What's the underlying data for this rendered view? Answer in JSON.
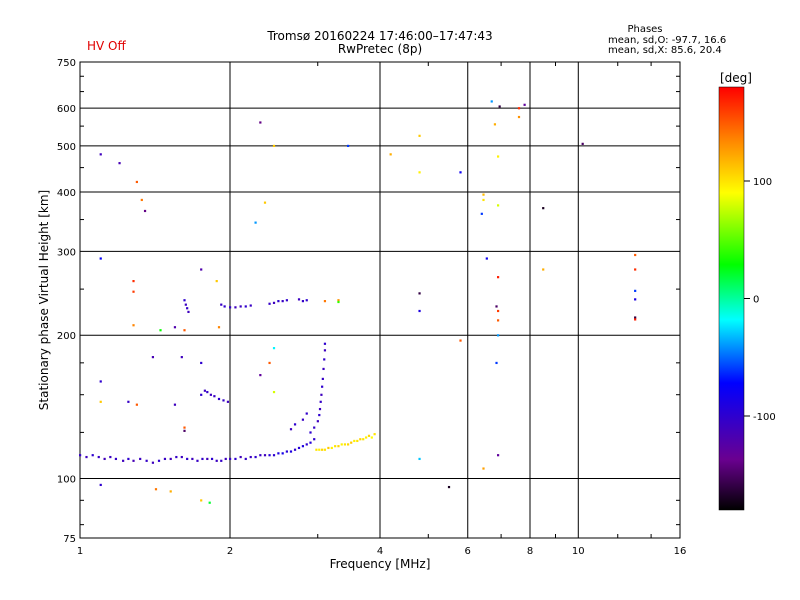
{
  "header": {
    "hv_status": "HV Off",
    "title_line1": "Tromsø 20160224 17:46:00–17:47:43",
    "title_line2": "RwPretec (8p)",
    "colors": {
      "hv_status": "#e00000"
    }
  },
  "stats": {
    "title": "Phases",
    "line_o": "mean, sd,O: -97.7, 16.6",
    "line_x": "mean, sd,X: 85.6, 20.4"
  },
  "colorbar": {
    "unit_label": "[deg]",
    "ticks": [
      {
        "value": 100,
        "label": "100"
      },
      {
        "value": 0,
        "label": "0"
      },
      {
        "value": -100,
        "label": "-100"
      }
    ],
    "range": [
      -180,
      180
    ]
  },
  "chart_data": {
    "type": "scatter",
    "title": "Tromsø 20160224 17:46:00–17:47:43 RwPretec (8p)",
    "xlabel": "Frequency [MHz]",
    "ylabel": "Stationary phase Virtual Height [km]",
    "xscale": "log",
    "yscale": "log",
    "xlim": [
      1,
      16
    ],
    "ylim": [
      75,
      750
    ],
    "grid": true,
    "x_ticks": [
      {
        "value": 1,
        "label": "1"
      },
      {
        "value": 2,
        "label": "2"
      },
      {
        "value": 4,
        "label": "4"
      },
      {
        "value": 6,
        "label": "6"
      },
      {
        "value": 8,
        "label": "8"
      },
      {
        "value": 10,
        "label": "10"
      },
      {
        "value": 16,
        "label": "16"
      }
    ],
    "y_ticks": [
      {
        "value": 75,
        "label": "75"
      },
      {
        "value": 100,
        "label": "100"
      },
      {
        "value": 200,
        "label": "200"
      },
      {
        "value": 300,
        "label": "300"
      },
      {
        "value": 400,
        "label": "400"
      },
      {
        "value": 500,
        "label": "500"
      },
      {
        "value": 600,
        "label": "600"
      },
      {
        "value": 750,
        "label": "750"
      }
    ],
    "color_by": "phase_deg",
    "points": [
      [
        1.0,
        112,
        -105
      ],
      [
        1.03,
        111,
        -110
      ],
      [
        1.06,
        112,
        -100
      ],
      [
        1.09,
        111,
        -105
      ],
      [
        1.12,
        110,
        -112
      ],
      [
        1.15,
        111,
        -108
      ],
      [
        1.18,
        110,
        -104
      ],
      [
        1.22,
        109,
        -110
      ],
      [
        1.25,
        110,
        -100
      ],
      [
        1.28,
        109,
        -115
      ],
      [
        1.32,
        110,
        -108
      ],
      [
        1.36,
        109,
        -104
      ],
      [
        1.4,
        108,
        -110
      ],
      [
        1.44,
        109,
        -100
      ],
      [
        1.48,
        110,
        -106
      ],
      [
        1.52,
        110,
        -112
      ],
      [
        1.56,
        111,
        -104
      ],
      [
        1.6,
        111,
        -108
      ],
      [
        1.64,
        110,
        -100
      ],
      [
        1.68,
        110,
        -110
      ],
      [
        1.72,
        109,
        -106
      ],
      [
        1.76,
        110,
        -104
      ],
      [
        1.8,
        110,
        -112
      ],
      [
        1.84,
        110,
        -100
      ],
      [
        1.88,
        109,
        -108
      ],
      [
        1.92,
        109,
        -104
      ],
      [
        1.96,
        110,
        -110
      ],
      [
        2.0,
        110,
        -106
      ],
      [
        2.05,
        110,
        -100
      ],
      [
        2.1,
        111,
        -112
      ],
      [
        2.15,
        110,
        -104
      ],
      [
        2.2,
        111,
        -108
      ],
      [
        2.25,
        111,
        -100
      ],
      [
        2.3,
        112,
        -106
      ],
      [
        2.35,
        112,
        -110
      ],
      [
        2.4,
        112,
        -95
      ],
      [
        2.45,
        112,
        -100
      ],
      [
        2.5,
        113,
        -90
      ],
      [
        2.55,
        113,
        -85
      ],
      [
        2.6,
        114,
        -95
      ],
      [
        2.65,
        114,
        -90
      ],
      [
        2.7,
        115,
        -100
      ],
      [
        2.75,
        116,
        -95
      ],
      [
        2.8,
        117,
        -90
      ],
      [
        2.85,
        118,
        -100
      ],
      [
        2.9,
        119,
        -95
      ],
      [
        2.95,
        121,
        -100
      ],
      [
        2.98,
        115,
        100
      ],
      [
        3.02,
        115,
        95
      ],
      [
        3.06,
        115,
        105
      ],
      [
        3.1,
        115,
        100
      ],
      [
        3.15,
        116,
        110
      ],
      [
        3.2,
        116,
        95
      ],
      [
        3.25,
        117,
        100
      ],
      [
        3.3,
        117,
        105
      ],
      [
        3.35,
        118,
        95
      ],
      [
        3.4,
        118,
        100
      ],
      [
        3.45,
        118,
        105
      ],
      [
        3.5,
        119,
        110
      ],
      [
        3.55,
        120,
        95
      ],
      [
        3.6,
        120,
        100
      ],
      [
        3.65,
        121,
        105
      ],
      [
        3.7,
        121,
        100
      ],
      [
        3.75,
        122,
        95
      ],
      [
        3.8,
        123,
        105
      ],
      [
        3.85,
        122,
        90
      ],
      [
        3.9,
        124,
        100
      ],
      [
        2.9,
        125,
        -100
      ],
      [
        2.95,
        128,
        -104
      ],
      [
        3.0,
        132,
        -110
      ],
      [
        3.02,
        136,
        -100
      ],
      [
        3.03,
        140,
        -108
      ],
      [
        3.04,
        145,
        -104
      ],
      [
        3.05,
        150,
        -110
      ],
      [
        3.06,
        156,
        -100
      ],
      [
        3.07,
        162,
        -105
      ],
      [
        3.08,
        170,
        -108
      ],
      [
        3.09,
        178,
        -102
      ],
      [
        3.1,
        186,
        -110
      ],
      [
        3.1,
        192,
        -100
      ],
      [
        2.7,
        130,
        -100
      ],
      [
        2.8,
        133,
        -106
      ],
      [
        2.85,
        137,
        -102
      ],
      [
        2.65,
        127,
        -110
      ],
      [
        1.62,
        237,
        -100
      ],
      [
        1.63,
        232,
        -108
      ],
      [
        1.64,
        228,
        -104
      ],
      [
        1.65,
        224,
        -110
      ],
      [
        1.92,
        232,
        -106
      ],
      [
        1.95,
        230,
        -100
      ],
      [
        2.0,
        229,
        -104
      ],
      [
        2.05,
        229,
        -110
      ],
      [
        2.1,
        230,
        -108
      ],
      [
        2.15,
        230,
        -100
      ],
      [
        2.2,
        231,
        -106
      ],
      [
        2.4,
        233,
        -104
      ],
      [
        2.45,
        234,
        -110
      ],
      [
        2.5,
        236,
        -100
      ],
      [
        2.55,
        236,
        -106
      ],
      [
        2.6,
        237,
        -102
      ],
      [
        2.75,
        238,
        -108
      ],
      [
        2.8,
        236,
        -104
      ],
      [
        2.85,
        237,
        -100
      ],
      [
        3.1,
        236,
        140
      ],
      [
        3.3,
        237,
        130
      ],
      [
        1.75,
        150,
        -100
      ],
      [
        1.78,
        153,
        -108
      ],
      [
        1.8,
        152,
        -104
      ],
      [
        1.83,
        150,
        -110
      ],
      [
        1.86,
        149,
        -106
      ],
      [
        1.9,
        147,
        -100
      ],
      [
        1.94,
        146,
        -104
      ],
      [
        1.98,
        145,
        -110
      ],
      [
        1.1,
        480,
        -110
      ],
      [
        1.2,
        460,
        -115
      ],
      [
        1.3,
        420,
        150
      ],
      [
        1.33,
        385,
        140
      ],
      [
        1.35,
        365,
        -140
      ],
      [
        1.1,
        290,
        -75
      ],
      [
        1.28,
        260,
        165
      ],
      [
        1.28,
        247,
        160
      ],
      [
        1.28,
        210,
        135
      ],
      [
        1.4,
        180,
        -115
      ],
      [
        1.1,
        160,
        -100
      ],
      [
        1.1,
        145,
        110
      ],
      [
        1.25,
        145,
        -105
      ],
      [
        1.3,
        143,
        150
      ],
      [
        1.55,
        143,
        -110
      ],
      [
        1.62,
        128,
        150
      ],
      [
        1.62,
        126,
        -150
      ],
      [
        1.55,
        208,
        -120
      ],
      [
        1.45,
        205,
        30
      ],
      [
        1.62,
        205,
        150
      ],
      [
        1.6,
        180,
        -110
      ],
      [
        1.75,
        175,
        -100
      ],
      [
        1.75,
        275,
        -120
      ],
      [
        1.88,
        260,
        110
      ],
      [
        1.9,
        208,
        135
      ],
      [
        1.52,
        94,
        120
      ],
      [
        1.75,
        90,
        110
      ],
      [
        1.82,
        89,
        20
      ],
      [
        1.1,
        97,
        -100
      ],
      [
        1.42,
        95,
        140
      ],
      [
        2.3,
        560,
        -140
      ],
      [
        2.45,
        500,
        110
      ],
      [
        2.35,
        380,
        110
      ],
      [
        2.25,
        345,
        -40
      ],
      [
        2.3,
        165,
        -130
      ],
      [
        2.45,
        188,
        -20
      ],
      [
        2.4,
        175,
        150
      ],
      [
        2.45,
        152,
        80
      ],
      [
        3.45,
        500,
        -60
      ],
      [
        3.3,
        235,
        40
      ],
      [
        4.2,
        480,
        120
      ],
      [
        4.8,
        525,
        110
      ],
      [
        4.8,
        440,
        95
      ],
      [
        4.8,
        245,
        -160
      ],
      [
        4.8,
        225,
        -90
      ],
      [
        4.8,
        110,
        -30
      ],
      [
        5.5,
        96,
        -170
      ],
      [
        5.8,
        195,
        150
      ],
      [
        5.8,
        440,
        -80
      ],
      [
        6.7,
        620,
        -40
      ],
      [
        6.95,
        605,
        -160
      ],
      [
        7.8,
        610,
        -130
      ],
      [
        7.6,
        600,
        165
      ],
      [
        7.6,
        575,
        130
      ],
      [
        6.8,
        555,
        120
      ],
      [
        6.9,
        475,
        95
      ],
      [
        6.45,
        395,
        115
      ],
      [
        6.45,
        385,
        100
      ],
      [
        6.4,
        360,
        -60
      ],
      [
        6.9,
        375,
        80
      ],
      [
        8.5,
        370,
        -170
      ],
      [
        8.5,
        275,
        120
      ],
      [
        10.2,
        505,
        -150
      ],
      [
        6.55,
        290,
        -80
      ],
      [
        6.9,
        265,
        170
      ],
      [
        6.9,
        225,
        160
      ],
      [
        6.85,
        230,
        -150
      ],
      [
        6.9,
        215,
        150
      ],
      [
        6.9,
        200,
        -40
      ],
      [
        6.85,
        175,
        -60
      ],
      [
        6.9,
        112,
        -130
      ],
      [
        6.45,
        105,
        125
      ],
      [
        13.0,
        295,
        150
      ],
      [
        13.0,
        275,
        165
      ],
      [
        13.0,
        248,
        -60
      ],
      [
        13.0,
        238,
        -90
      ],
      [
        13.0,
        218,
        -160
      ],
      [
        13.0,
        216,
        170
      ]
    ]
  }
}
